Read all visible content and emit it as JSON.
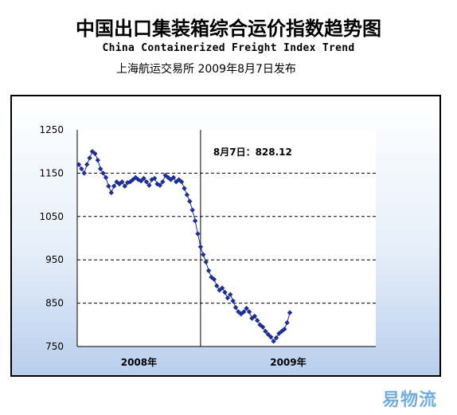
{
  "header": {
    "title_cn": "中国出口集装箱综合运价指数趋势图",
    "title_en": "China Containerized Freight Index Trend",
    "subtitle": "上海航运交易所  2009年8月7日发布"
  },
  "watermark": "易物流",
  "chart_data": {
    "type": "line",
    "title": "中国出口集装箱综合运价指数趋势图",
    "annotation": "8月7日：828.12",
    "ylim": [
      750,
      1250
    ],
    "yticks": [
      "1250",
      "1150",
      "1050",
      "950",
      "850",
      "750"
    ],
    "year_labels": [
      "2008年",
      "2009年"
    ],
    "year_divider_index": 45,
    "grid": "dashed horizontal",
    "line_color": "#1f2f8f",
    "marker": "diamond",
    "series": [
      {
        "values": [
          1170,
          1160,
          1150,
          1170,
          1185,
          1200,
          1195,
          1180,
          1160,
          1150,
          1140,
          1120,
          1105,
          1120,
          1130,
          1125,
          1130,
          1120,
          1128,
          1130,
          1135,
          1140,
          1135,
          1132,
          1138,
          1130,
          1122,
          1135,
          1138,
          1125,
          1122,
          1130,
          1145,
          1140,
          1135,
          1140,
          1130,
          1135,
          1130,
          1115,
          1100,
          1085,
          1065,
          1040,
          1010,
          980,
          962,
          945,
          925,
          910,
          905,
          890,
          880,
          885,
          875,
          862,
          870,
          855,
          840,
          830,
          825,
          830,
          838,
          830,
          815,
          820,
          810,
          800,
          795,
          785,
          778,
          772,
          762,
          770,
          780,
          785,
          790,
          805,
          828
        ]
      }
    ]
  }
}
